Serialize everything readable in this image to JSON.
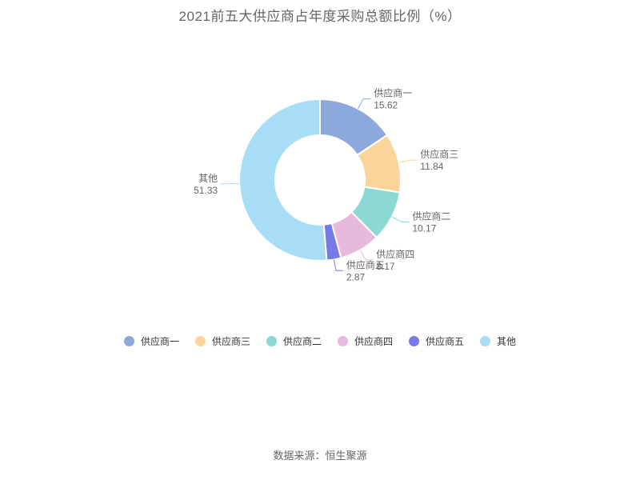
{
  "page": {
    "title": "2021前五大供应商占年度采购总额比例（%）",
    "source": "数据来源：恒生聚源"
  },
  "chart_data": {
    "type": "pie",
    "subtype": "donut",
    "title": "2021前五大供应商占年度采购总额比例（%）",
    "unit": "%",
    "start_angle": "top",
    "direction": "clockwise",
    "labels": "outside, leader lines, name above value",
    "legend_position": "bottom-center",
    "series": [
      {
        "name": "供应商一",
        "value": 15.62,
        "color": "#8DA9DB"
      },
      {
        "name": "供应商三",
        "value": 11.84,
        "color": "#FBD49B"
      },
      {
        "name": "供应商二",
        "value": 10.17,
        "color": "#8CD8D2"
      },
      {
        "name": "供应商四",
        "value": 8.17,
        "color": "#E7B9DC"
      },
      {
        "name": "供应商五",
        "value": 2.87,
        "color": "#7679E8"
      },
      {
        "name": "其他",
        "value": 51.33,
        "color": "#A8DDF8"
      }
    ],
    "legend": [
      "供应商一",
      "供应商三",
      "供应商二",
      "供应商四",
      "供应商五",
      "其他"
    ]
  }
}
